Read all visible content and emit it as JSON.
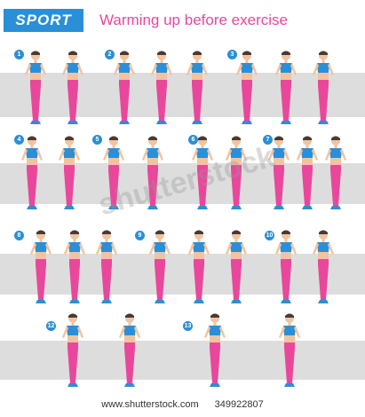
{
  "header": {
    "badge": "SPORT",
    "title": "Warming up before exercise"
  },
  "steps": [
    "1",
    "2",
    "3",
    "4",
    "5",
    "6",
    "7",
    "8",
    "9",
    "10",
    "12",
    "13"
  ],
  "footer": {
    "site": "www.shutterstock.com",
    "id": "349922807"
  },
  "watermark": "shutterstock",
  "colors": {
    "accent_blue": "#2a8fd6",
    "pink": "#e9479c",
    "band": "#dddddd",
    "skin": "#f2c3a0"
  }
}
